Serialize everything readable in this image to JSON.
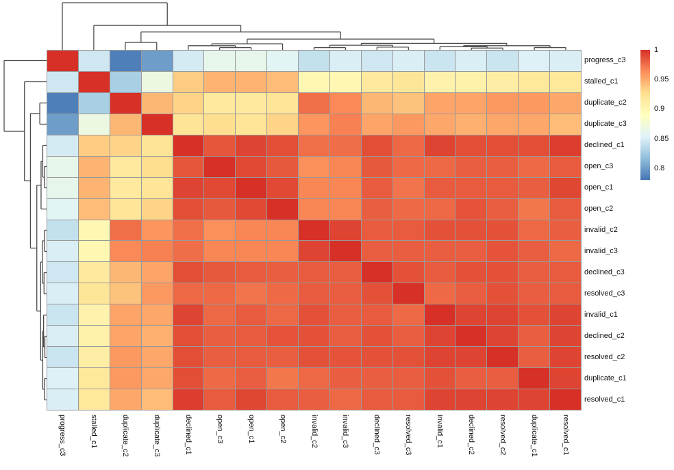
{
  "chart_data": {
    "type": "heatmap",
    "title": "",
    "labels": [
      "progress_c3",
      "stalled_c1",
      "duplicate_c2",
      "duplicate_c3",
      "declined_c1",
      "open_c3",
      "open_c1",
      "open_c2",
      "invalid_c2",
      "invalid_c3",
      "declined_c3",
      "resolved_c3",
      "invalid_c1",
      "declined_c2",
      "resolved_c2",
      "duplicate_c1",
      "resolved_c1"
    ],
    "matrix": [
      [
        1,
        0.845,
        0.785,
        0.8,
        0.848,
        0.862,
        0.862,
        0.856,
        0.84,
        0.85,
        0.845,
        0.85,
        0.843,
        0.85,
        0.843,
        0.852,
        0.85
      ],
      [
        0.845,
        1,
        0.828,
        0.868,
        0.935,
        0.946,
        0.946,
        0.942,
        0.9,
        0.9,
        0.916,
        0.92,
        0.905,
        0.906,
        0.91,
        0.917,
        0.917
      ],
      [
        0.785,
        0.828,
        1,
        0.945,
        0.932,
        0.916,
        0.916,
        0.921,
        0.975,
        0.965,
        0.945,
        0.94,
        0.953,
        0.953,
        0.958,
        0.958,
        0.952
      ],
      [
        0.8,
        0.868,
        0.945,
        1,
        0.922,
        0.927,
        0.921,
        0.932,
        0.96,
        0.968,
        0.953,
        0.958,
        0.952,
        0.948,
        0.952,
        0.952,
        0.942
      ],
      [
        0.848,
        0.935,
        0.932,
        0.922,
        1,
        0.985,
        0.992,
        0.988,
        0.975,
        0.976,
        0.988,
        0.978,
        0.992,
        0.988,
        0.988,
        0.988,
        0.995
      ],
      [
        0.862,
        0.946,
        0.916,
        0.927,
        0.985,
        1,
        0.99,
        0.984,
        0.962,
        0.966,
        0.984,
        0.978,
        0.978,
        0.982,
        0.982,
        0.977,
        0.983
      ],
      [
        0.862,
        0.946,
        0.916,
        0.921,
        0.992,
        0.99,
        1,
        0.99,
        0.966,
        0.966,
        0.983,
        0.973,
        0.983,
        0.983,
        0.983,
        0.982,
        0.991
      ],
      [
        0.856,
        0.942,
        0.921,
        0.932,
        0.988,
        0.984,
        0.99,
        1,
        0.966,
        0.966,
        0.982,
        0.977,
        0.978,
        0.986,
        0.982,
        0.972,
        0.983
      ],
      [
        0.84,
        0.9,
        0.975,
        0.96,
        0.975,
        0.962,
        0.966,
        0.966,
        1,
        0.992,
        0.983,
        0.983,
        0.987,
        0.987,
        0.987,
        0.978,
        0.982
      ],
      [
        0.85,
        0.9,
        0.965,
        0.968,
        0.976,
        0.966,
        0.966,
        0.966,
        0.992,
        1,
        0.982,
        0.982,
        0.982,
        0.982,
        0.986,
        0.982,
        0.978
      ],
      [
        0.845,
        0.916,
        0.945,
        0.953,
        0.988,
        0.984,
        0.983,
        0.982,
        0.983,
        0.982,
        1,
        0.987,
        0.983,
        0.987,
        0.987,
        0.982,
        0.983
      ],
      [
        0.85,
        0.92,
        0.94,
        0.958,
        0.978,
        0.978,
        0.973,
        0.977,
        0.983,
        0.982,
        0.987,
        1,
        0.977,
        0.982,
        0.987,
        0.982,
        0.983
      ],
      [
        0.843,
        0.905,
        0.953,
        0.952,
        0.992,
        0.978,
        0.983,
        0.978,
        0.987,
        0.982,
        0.983,
        0.977,
        1,
        0.992,
        0.992,
        0.987,
        0.992
      ],
      [
        0.85,
        0.906,
        0.953,
        0.948,
        0.988,
        0.982,
        0.983,
        0.986,
        0.987,
        0.982,
        0.987,
        0.982,
        0.992,
        1,
        0.992,
        0.982,
        0.992
      ],
      [
        0.843,
        0.91,
        0.958,
        0.952,
        0.988,
        0.982,
        0.983,
        0.982,
        0.987,
        0.986,
        0.987,
        0.987,
        0.992,
        0.992,
        1,
        0.982,
        0.992
      ],
      [
        0.852,
        0.917,
        0.958,
        0.952,
        0.988,
        0.977,
        0.982,
        0.972,
        0.978,
        0.982,
        0.982,
        0.982,
        0.987,
        0.982,
        0.982,
        1,
        0.992
      ],
      [
        0.85,
        0.917,
        0.952,
        0.942,
        0.995,
        0.983,
        0.991,
        0.983,
        0.982,
        0.978,
        0.983,
        0.983,
        0.992,
        0.992,
        0.992,
        0.992,
        1
      ]
    ],
    "colormap": {
      "name": "RdYlBu-reversed",
      "stops": [
        "#4575B4",
        "#91BFDB",
        "#E0F3F8",
        "#FFFFBF",
        "#FEE090",
        "#FC8D59",
        "#D73027"
      ],
      "vmin": 0.78,
      "vmax": 1.0
    },
    "legend": {
      "position": "right",
      "ticks": [
        "1",
        "0.95",
        "0.9",
        "0.85",
        "0.8"
      ],
      "tick_values": [
        1,
        0.95,
        0.9,
        0.85,
        0.8
      ]
    },
    "grid": true,
    "grid_color": "#999999",
    "dendrogram_color": "#4a4a4a",
    "dendrogram_tree": {
      "h": 1,
      "c": [
        0,
        {
          "h": 0.52,
          "c": [
            1,
            {
              "h": 0.38,
              "c": [
                {
                  "h": 0.16,
                  "c": [
                    2,
                    3
                  ]
                },
                {
                  "h": 0.23,
                  "c": [
                    {
                      "h": 0.13,
                      "c": [
                        {
                          "h": 0.09,
                          "c": [
                            4,
                            {
                              "h": 0.05,
                              "c": [
                                5,
                                6
                              ]
                            }
                          ]
                        },
                        7
                      ]
                    },
                    {
                      "h": 0.14,
                      "c": [
                        {
                          "h": 0.1,
                          "c": [
                            {
                              "h": 0.05,
                              "c": [
                                8,
                                9
                              ]
                            },
                            {
                              "h": 0.06,
                              "c": [
                                10,
                                11
                              ]
                            }
                          ]
                        },
                        {
                          "h": 0.09,
                          "c": [
                            {
                              "h": 0.07,
                              "c": [
                                12,
                                {
                                  "h": 0.04,
                                  "c": [
                                    13,
                                    14
                                  ]
                                }
                              ]
                            },
                            {
                              "h": 0.05,
                              "c": [
                                15,
                                16
                              ]
                            }
                          ]
                        }
                      ]
                    }
                  ]
                }
              ]
            }
          ]
        }
      ]
    }
  }
}
